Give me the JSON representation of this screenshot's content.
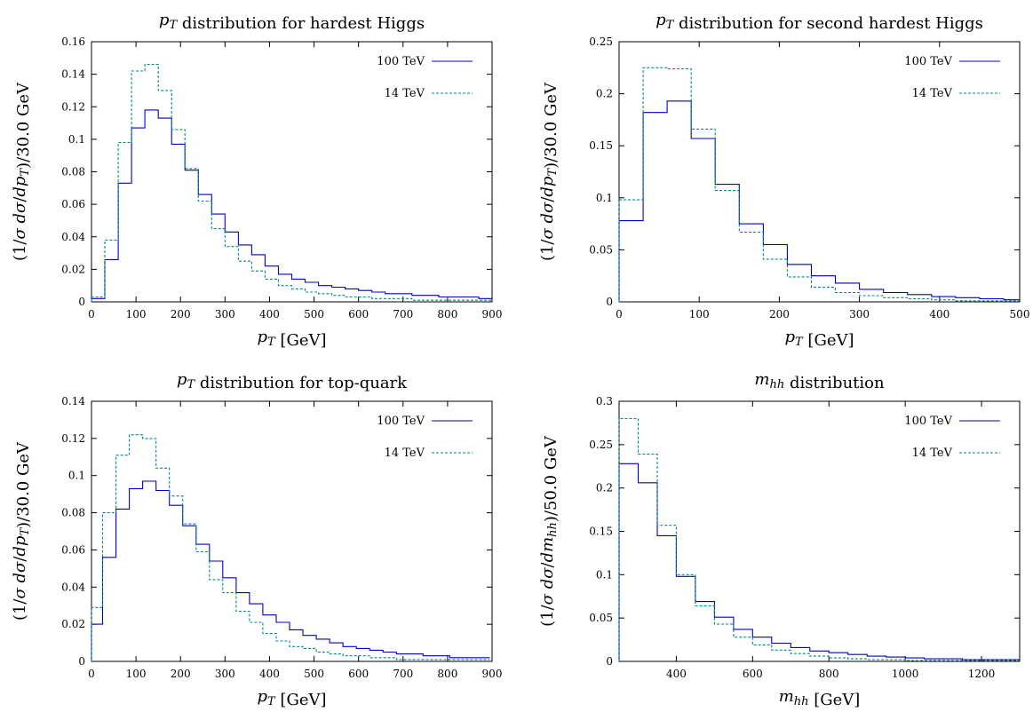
{
  "chart_data": [
    {
      "type": "line",
      "title": "p_T distribution for hardest Higgs",
      "title_rich": [
        [
          "p",
          "i"
        ],
        [
          "T",
          "sub"
        ],
        [
          " distribution for hardest Higgs",
          "n"
        ]
      ],
      "xlabel": "p_T [GeV]",
      "xlabel_rich": [
        [
          "p",
          "i"
        ],
        [
          "T",
          "sub"
        ],
        [
          " [GeV]",
          "n"
        ]
      ],
      "ylabel": "(1/σ dσ/dp_T)/30.0 GeV",
      "ylabel_rich": [
        [
          "(1/",
          "n"
        ],
        [
          "σ d",
          "i"
        ],
        [
          "σ",
          "i"
        ],
        [
          "/",
          "n"
        ],
        [
          "dp",
          "i"
        ],
        [
          "T",
          "sub"
        ],
        [
          ")/30.0 GeV",
          "n"
        ]
      ],
      "xlim": [
        0,
        900
      ],
      "ylim": [
        0,
        0.16
      ],
      "xticks": [
        0,
        100,
        200,
        300,
        400,
        500,
        600,
        700,
        800,
        900
      ],
      "yticks": [
        0,
        0.02,
        0.04,
        0.06,
        0.08,
        0.1,
        0.12,
        0.14,
        0.16
      ],
      "ytick_labels": [
        "0",
        "0.02",
        "0.04",
        "0.06",
        "0.08",
        "0.1",
        "0.12",
        "0.14",
        "0.16"
      ],
      "bin_width": 30,
      "bin_start": 0,
      "legend_position": "top-right",
      "series": [
        {
          "name": "100 TeV",
          "color": "#0000cc",
          "dash": "solid",
          "values": [
            0.002,
            0.026,
            0.073,
            0.107,
            0.118,
            0.113,
            0.097,
            0.081,
            0.066,
            0.054,
            0.043,
            0.035,
            0.029,
            0.022,
            0.017,
            0.014,
            0.012,
            0.01,
            0.009,
            0.008,
            0.007,
            0.006,
            0.005,
            0.005,
            0.004,
            0.004,
            0.003,
            0.003,
            0.003,
            0.002
          ]
        },
        {
          "name": "14 TeV",
          "color": "#008b8b",
          "dash": "dashed",
          "values": [
            0.003,
            0.038,
            0.098,
            0.142,
            0.146,
            0.13,
            0.106,
            0.082,
            0.062,
            0.045,
            0.034,
            0.025,
            0.019,
            0.014,
            0.01,
            0.008,
            0.006,
            0.005,
            0.004,
            0.003,
            0.003,
            0.002,
            0.002,
            0.002,
            0.001,
            0.001,
            0.001,
            0.001,
            0.001,
            0.001
          ]
        }
      ]
    },
    {
      "type": "line",
      "title": "p_T distribution for second hardest Higgs",
      "title_rich": [
        [
          "p",
          "i"
        ],
        [
          "T",
          "sub"
        ],
        [
          " distribution for second hardest Higgs",
          "n"
        ]
      ],
      "xlabel": "p_T [GeV]",
      "xlabel_rich": [
        [
          "p",
          "i"
        ],
        [
          "T",
          "sub"
        ],
        [
          " [GeV]",
          "n"
        ]
      ],
      "ylabel": "(1/σ dσ/dp_T)/30.0 GeV",
      "ylabel_rich": [
        [
          "(1/",
          "n"
        ],
        [
          "σ d",
          "i"
        ],
        [
          "σ",
          "i"
        ],
        [
          "/",
          "n"
        ],
        [
          "dp",
          "i"
        ],
        [
          "T",
          "sub"
        ],
        [
          ")/30.0 GeV",
          "n"
        ]
      ],
      "xlim": [
        0,
        500
      ],
      "ylim": [
        0,
        0.25
      ],
      "xticks": [
        0,
        100,
        200,
        300,
        400,
        500
      ],
      "yticks": [
        0,
        0.05,
        0.1,
        0.15,
        0.2,
        0.25
      ],
      "ytick_labels": [
        "0",
        "0.05",
        "0.1",
        "0.15",
        "0.2",
        "0.25"
      ],
      "bin_width": 30,
      "bin_start": 0,
      "legend_position": "top-right",
      "series": [
        {
          "name": "100 TeV",
          "color": "#0000cc",
          "dash": "solid",
          "values": [
            0.078,
            0.182,
            0.193,
            0.157,
            0.113,
            0.075,
            0.055,
            0.036,
            0.025,
            0.018,
            0.012,
            0.009,
            0.007,
            0.005,
            0.004,
            0.003,
            0.002
          ]
        },
        {
          "name": "14 TeV",
          "color": "#008b8b",
          "dash": "dashed",
          "values": [
            0.098,
            0.225,
            0.224,
            0.166,
            0.107,
            0.067,
            0.041,
            0.024,
            0.014,
            0.009,
            0.006,
            0.004,
            0.003,
            0.002,
            0.001,
            0.001,
            0.001
          ]
        }
      ]
    },
    {
      "type": "line",
      "title": "p_T distribution for top-quark",
      "title_rich": [
        [
          "p",
          "i"
        ],
        [
          "T",
          "sub"
        ],
        [
          " distribution for top-quark",
          "n"
        ]
      ],
      "xlabel": "p_T [GeV]",
      "xlabel_rich": [
        [
          "p",
          "i"
        ],
        [
          "T",
          "sub"
        ],
        [
          " [GeV]",
          "n"
        ]
      ],
      "ylabel": "(1/σ dσ/dp_T)/30.0 GeV",
      "ylabel_rich": [
        [
          "(1/",
          "n"
        ],
        [
          "σ d",
          "i"
        ],
        [
          "σ",
          "i"
        ],
        [
          "/",
          "n"
        ],
        [
          "dp",
          "i"
        ],
        [
          "T",
          "sub"
        ],
        [
          ")/30.0 GeV",
          "n"
        ]
      ],
      "xlim": [
        0,
        900
      ],
      "ylim": [
        0,
        0.14
      ],
      "xticks": [
        0,
        100,
        200,
        300,
        400,
        500,
        600,
        700,
        800,
        900
      ],
      "yticks": [
        0,
        0.02,
        0.04,
        0.06,
        0.08,
        0.1,
        0.12,
        0.14
      ],
      "ytick_labels": [
        "0",
        "0.02",
        "0.04",
        "0.06",
        "0.08",
        "0.1",
        "0.12",
        "0.14"
      ],
      "bin_width": 30,
      "bin_start": -5,
      "legend_position": "top-right",
      "series": [
        {
          "name": "100 TeV",
          "color": "#0000cc",
          "dash": "solid",
          "values": [
            0.02,
            0.056,
            0.082,
            0.093,
            0.097,
            0.092,
            0.084,
            0.073,
            0.063,
            0.054,
            0.045,
            0.037,
            0.031,
            0.025,
            0.021,
            0.017,
            0.014,
            0.012,
            0.01,
            0.008,
            0.007,
            0.006,
            0.005,
            0.004,
            0.004,
            0.003,
            0.003,
            0.002,
            0.002,
            0.002
          ]
        },
        {
          "name": "14 TeV",
          "color": "#008b8b",
          "dash": "dashed",
          "values": [
            0.029,
            0.08,
            0.111,
            0.122,
            0.12,
            0.104,
            0.089,
            0.074,
            0.059,
            0.044,
            0.037,
            0.027,
            0.021,
            0.015,
            0.011,
            0.008,
            0.007,
            0.005,
            0.004,
            0.003,
            0.003,
            0.002,
            0.002,
            0.001,
            0.001,
            0.001,
            0.001,
            0.001,
            0.001,
            0.001
          ]
        }
      ]
    },
    {
      "type": "line",
      "title": "m_hh distribution",
      "title_rich": [
        [
          "m",
          "i"
        ],
        [
          "hh",
          "sub"
        ],
        [
          " distribution",
          "n"
        ]
      ],
      "xlabel": "m_hh [GeV]",
      "xlabel_rich": [
        [
          "m",
          "i"
        ],
        [
          "hh",
          "sub"
        ],
        [
          " [GeV]",
          "n"
        ]
      ],
      "ylabel": "(1/σ dσ/dm_hh)/50.0 GeV",
      "ylabel_rich": [
        [
          "(1/",
          "n"
        ],
        [
          "σ d",
          "i"
        ],
        [
          "σ",
          "i"
        ],
        [
          "/",
          "n"
        ],
        [
          "dm",
          "i"
        ],
        [
          "hh",
          "sub"
        ],
        [
          ")/50.0 GeV",
          "n"
        ]
      ],
      "xlim": [
        250,
        1300
      ],
      "ylim": [
        0,
        0.3
      ],
      "xticks": [
        400,
        600,
        800,
        1000,
        1200
      ],
      "yticks": [
        0,
        0.05,
        0.1,
        0.15,
        0.2,
        0.25,
        0.3
      ],
      "ytick_labels": [
        "0",
        "0.05",
        "0.1",
        "0.15",
        "0.2",
        "0.25",
        "0.3"
      ],
      "bin_width": 50,
      "bin_start": 250,
      "legend_position": "top-right",
      "series": [
        {
          "name": "100 TeV",
          "color": "#0000cc",
          "dash": "solid",
          "values": [
            0.228,
            0.206,
            0.145,
            0.098,
            0.069,
            0.051,
            0.037,
            0.028,
            0.021,
            0.016,
            0.012,
            0.01,
            0.008,
            0.006,
            0.005,
            0.004,
            0.003,
            0.003,
            0.002,
            0.002,
            0.002
          ]
        },
        {
          "name": "14 TeV",
          "color": "#008b8b",
          "dash": "dashed",
          "values": [
            0.28,
            0.239,
            0.157,
            0.1,
            0.064,
            0.043,
            0.028,
            0.019,
            0.013,
            0.009,
            0.006,
            0.004,
            0.003,
            0.002,
            0.002,
            0.001,
            0.001,
            0.001,
            0.001,
            0.001,
            0.001
          ]
        }
      ]
    }
  ]
}
